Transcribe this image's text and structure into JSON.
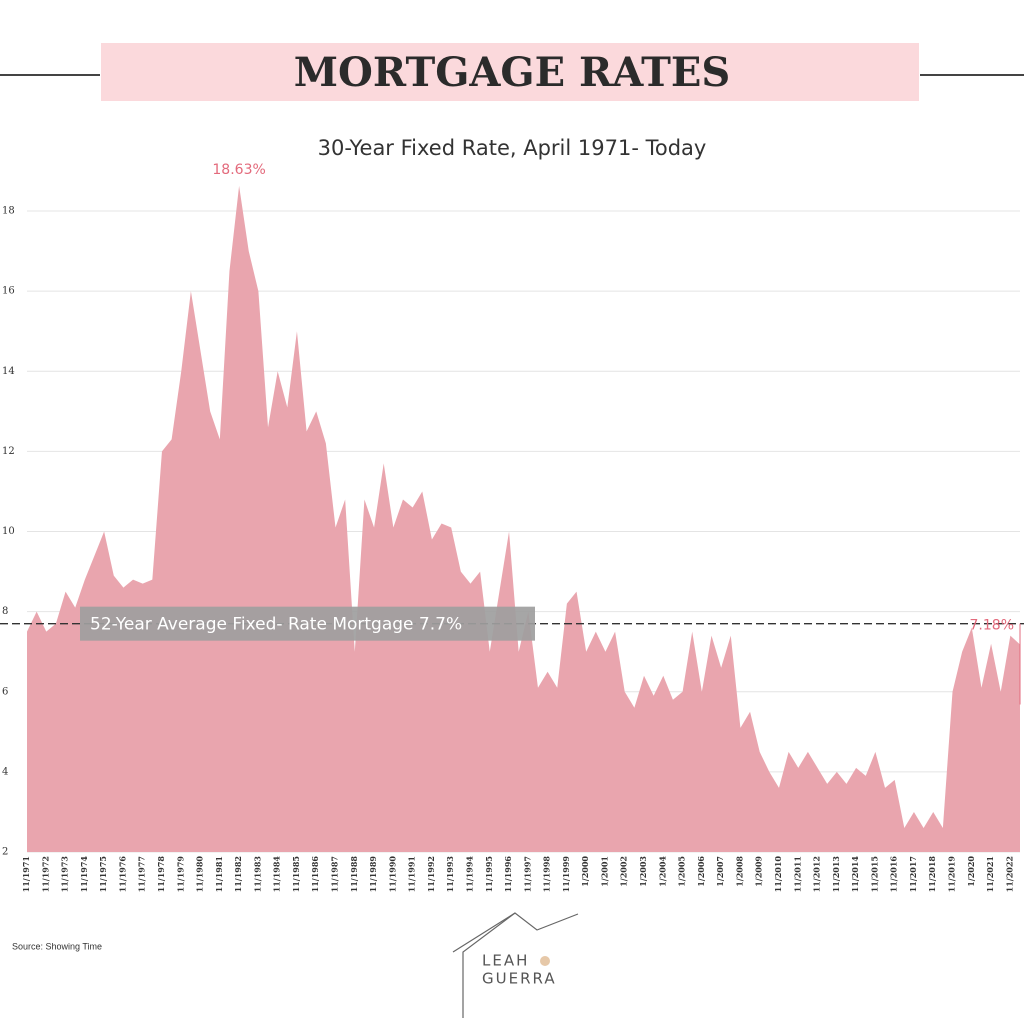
{
  "chart_data": {
    "type": "area",
    "header": "MORTGAGE RATES",
    "title": "30-Year Fixed Rate, April 1971- Today",
    "categories": [
      "11/1971",
      null,
      "11/1972",
      null,
      "11/1973",
      null,
      "11/1974",
      null,
      "11/1975",
      null,
      "11/1976",
      null,
      "11/1977",
      null,
      "11/1978",
      null,
      "11/1979",
      null,
      "11/1980",
      null,
      "11/1981",
      null,
      "11/1982",
      null,
      "11/1983",
      null,
      "11/1984",
      null,
      "11/1985",
      null,
      "11/1986",
      null,
      "11/1987",
      null,
      "11/1988",
      null,
      "11/1989",
      null,
      "11/1990",
      null,
      "11/1991",
      null,
      "11/1992",
      null,
      "11/1993",
      null,
      "11/1994",
      null,
      "11/1995",
      null,
      "11/1996",
      null,
      "11/1997",
      null,
      "11/1998",
      null,
      "11/1999",
      null,
      "1/2000",
      null,
      "1/2001",
      null,
      "1/2002",
      null,
      "1/2003",
      null,
      "1/2004",
      null,
      "1/2005",
      null,
      "1/2006",
      null,
      "1/2007",
      null,
      "1/2008",
      null,
      "1/2009",
      null,
      "11/2010",
      null,
      "11/2011",
      null,
      "11/2012",
      null,
      "11/2013",
      null,
      "11/2014",
      null,
      "11/2015",
      null,
      "11/2016",
      null,
      "11/2017",
      null,
      "11/2018",
      null,
      "11/2019",
      null,
      "1/2020",
      null,
      "11/2021",
      null,
      "11/2022",
      null
    ],
    "values": [
      7.5,
      8.0,
      7.5,
      7.7,
      8.5,
      8.1,
      8.8,
      9.4,
      10.0,
      8.9,
      8.6,
      8.8,
      8.7,
      8.8,
      12.0,
      12.3,
      14.0,
      16.0,
      14.5,
      13.0,
      12.3,
      16.5,
      18.63,
      17.0,
      16.0,
      12.6,
      14.0,
      13.1,
      15.0,
      12.5,
      13.0,
      12.2,
      10.1,
      10.8,
      7.0,
      10.8,
      10.1,
      11.7,
      10.1,
      10.8,
      10.6,
      11.0,
      9.8,
      10.2,
      10.1,
      9.0,
      8.7,
      9.0,
      7.0,
      8.5,
      10.0,
      7.0,
      8.0,
      6.1,
      6.5,
      6.1,
      8.2,
      8.5,
      7.0,
      7.5,
      7.0,
      7.5,
      6.0,
      5.6,
      6.4,
      5.9,
      6.4,
      5.8,
      6.0,
      7.5,
      6.0,
      7.4,
      6.6,
      7.4,
      5.1,
      5.5,
      4.5,
      4.0,
      3.6,
      4.5,
      4.1,
      4.5,
      4.1,
      3.7,
      4.0,
      3.7,
      4.1,
      3.9,
      4.5,
      3.6,
      3.8,
      2.6,
      3.0,
      2.6,
      3.0,
      2.6,
      6.0,
      7.0,
      7.6,
      6.1,
      7.2,
      6.0,
      7.4,
      7.18
    ],
    "color": "#e9a5ae",
    "ylim": [
      2,
      19
    ],
    "yticks": [
      2,
      4,
      6,
      8,
      10,
      12,
      14,
      16,
      18
    ],
    "grid": true,
    "peak": {
      "value": 18.63,
      "label": "18.63%"
    },
    "latest": {
      "value": 7.18,
      "label": "7.18%"
    },
    "average": {
      "value": 7.7,
      "label": "52-Year Average Fixed- Rate Mortgage 7.7%"
    },
    "source": "Source: Showing Time",
    "logo": [
      "LEAH",
      "GUERRA"
    ]
  }
}
